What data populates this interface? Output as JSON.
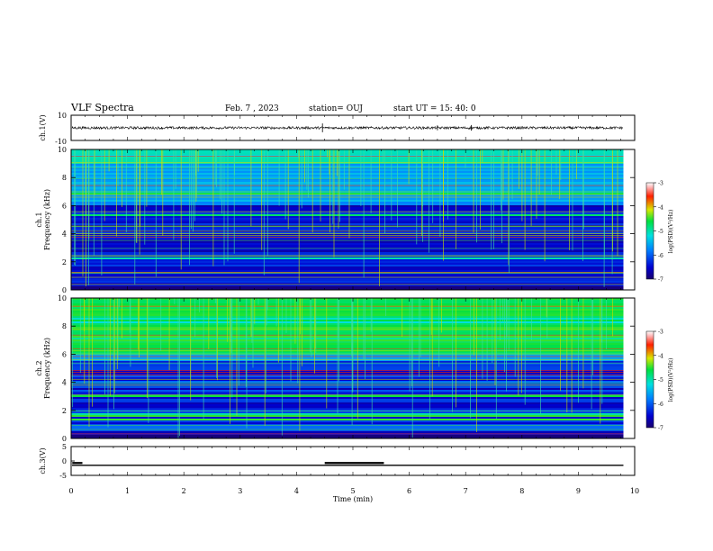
{
  "header": {
    "title": "VLF Spectra",
    "date": "Feb. 7 , 2023",
    "station": "station= OUJ",
    "start_ut": "start  UT =   15: 40: 0"
  },
  "chart_data": [
    {
      "type": "line",
      "panel": "ch1-waveform",
      "ylabel": "ch.1(V)",
      "ylim": [
        -10,
        10
      ],
      "yticks": [
        "10",
        "-10"
      ],
      "xlim": [
        0,
        10
      ],
      "trace": {
        "mean": 0,
        "amplitude_approx": 1,
        "xmax": 9.8,
        "color": "#000000"
      }
    },
    {
      "type": "heatmap",
      "panel": "ch1-spectrogram",
      "ylabel": "ch.1\nFrequency  (kHz)",
      "ylim": [
        0,
        10
      ],
      "yticks": [
        "0",
        "2",
        "4",
        "6",
        "8",
        "10"
      ],
      "xlim": [
        0,
        10
      ],
      "data_xmax": 9.8,
      "colorbar": {
        "label": "log(PSD)(V²/Hz)",
        "range": [
          -7,
          -3
        ],
        "ticks": [
          "-3",
          "-4",
          "-5",
          "-6",
          "-7"
        ]
      }
    },
    {
      "type": "heatmap",
      "panel": "ch2-spectrogram",
      "ylabel": "ch.2\nFrequency  (kHz)",
      "ylim": [
        0,
        10
      ],
      "yticks": [
        "0",
        "2",
        "4",
        "6",
        "8",
        "10"
      ],
      "xlim": [
        0,
        10
      ],
      "data_xmax": 9.8,
      "colorbar": {
        "label": "log(PSD)(V²/Hz)",
        "range": [
          -7,
          -3
        ],
        "ticks": [
          "-3",
          "-4",
          "-5",
          "-6",
          "-7"
        ]
      }
    },
    {
      "type": "line",
      "panel": "ch3-signal",
      "ylabel": "ch.3(V)",
      "ylim": [
        -5,
        5
      ],
      "yticks": [
        "5",
        "0",
        "-5"
      ],
      "xlim": [
        0,
        10
      ],
      "xlabel": "Time  (min)",
      "xticks": [
        "0",
        "1",
        "2",
        "3",
        "4",
        "5",
        "6",
        "7",
        "8",
        "9",
        "10"
      ],
      "baseline_value": -1.5,
      "segments": [
        {
          "x": [
            0.02,
            0.2
          ],
          "y": -0.7
        },
        {
          "x": [
            4.5,
            5.55
          ],
          "y": -0.7
        }
      ],
      "color": "#000000"
    }
  ]
}
